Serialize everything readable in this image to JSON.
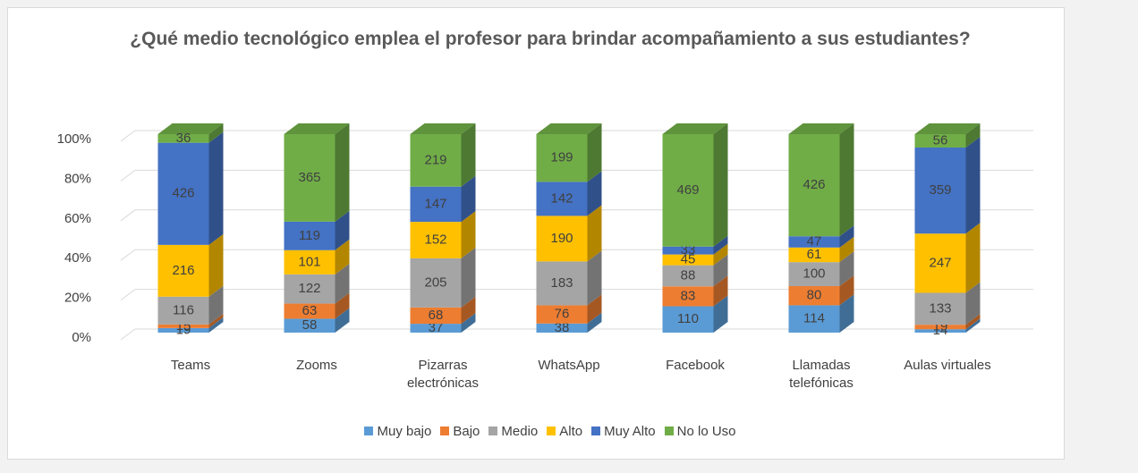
{
  "chart_data": {
    "type": "bar",
    "stacking": "percent",
    "three_d": true,
    "title": "¿Qué medio tecnológico emplea el profesor para brindar acompañamiento a sus estudiantes?",
    "categories": [
      "Teams",
      "Zooms",
      "Pizarras electrónicas",
      "WhatsApp",
      "Facebook",
      "Llamadas telefónicas",
      "Aulas virtuales"
    ],
    "series": [
      {
        "name": "Muy bajo",
        "color": "#5b9bd5",
        "values": [
          19,
          58,
          37,
          38,
          110,
          114,
          14
        ]
      },
      {
        "name": "Bajo",
        "color": "#ed7d31",
        "values": [
          15,
          63,
          68,
          76,
          83,
          80,
          19
        ]
      },
      {
        "name": "Medio",
        "color": "#a5a5a5",
        "values": [
          116,
          122,
          205,
          183,
          88,
          100,
          133
        ]
      },
      {
        "name": "Alto",
        "color": "#ffc000",
        "values": [
          216,
          101,
          152,
          190,
          45,
          61,
          247
        ]
      },
      {
        "name": "Muy Alto",
        "color": "#4472c4",
        "values": [
          426,
          119,
          147,
          142,
          33,
          47,
          359
        ]
      },
      {
        "name": "No lo Uso",
        "color": "#70ad47",
        "values": [
          36,
          365,
          219,
          199,
          469,
          426,
          56
        ]
      }
    ],
    "ylim": [
      0,
      100
    ],
    "yticks": [
      {
        "value": 0,
        "label": "0%"
      },
      {
        "value": 20,
        "label": "20%"
      },
      {
        "value": 40,
        "label": "40%"
      },
      {
        "value": 60,
        "label": "60%"
      },
      {
        "value": 80,
        "label": "80%"
      },
      {
        "value": 100,
        "label": "100%"
      }
    ],
    "grid": true,
    "legend": "bottom"
  }
}
